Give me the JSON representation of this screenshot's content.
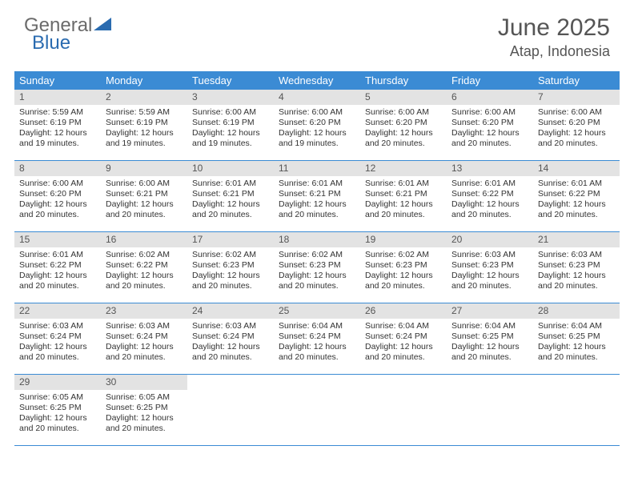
{
  "brand": {
    "general": "General",
    "blue": "Blue"
  },
  "title": {
    "month": "June 2025",
    "location": "Atap, Indonesia"
  },
  "colors": {
    "accent": "#3b8bd4",
    "accentDark": "#2a6bb0",
    "grayText": "#6a6a6a",
    "daynumBg": "#e3e3e3"
  },
  "dayNames": [
    "Sunday",
    "Monday",
    "Tuesday",
    "Wednesday",
    "Thursday",
    "Friday",
    "Saturday"
  ],
  "labels": {
    "sunrise": "Sunrise:",
    "sunset": "Sunset:",
    "daylight": "Daylight:"
  },
  "days": [
    {
      "n": 1,
      "sr": "5:59 AM",
      "ss": "6:19 PM",
      "dl": "12 hours and 19 minutes."
    },
    {
      "n": 2,
      "sr": "5:59 AM",
      "ss": "6:19 PM",
      "dl": "12 hours and 19 minutes."
    },
    {
      "n": 3,
      "sr": "6:00 AM",
      "ss": "6:19 PM",
      "dl": "12 hours and 19 minutes."
    },
    {
      "n": 4,
      "sr": "6:00 AM",
      "ss": "6:20 PM",
      "dl": "12 hours and 19 minutes."
    },
    {
      "n": 5,
      "sr": "6:00 AM",
      "ss": "6:20 PM",
      "dl": "12 hours and 20 minutes."
    },
    {
      "n": 6,
      "sr": "6:00 AM",
      "ss": "6:20 PM",
      "dl": "12 hours and 20 minutes."
    },
    {
      "n": 7,
      "sr": "6:00 AM",
      "ss": "6:20 PM",
      "dl": "12 hours and 20 minutes."
    },
    {
      "n": 8,
      "sr": "6:00 AM",
      "ss": "6:20 PM",
      "dl": "12 hours and 20 minutes."
    },
    {
      "n": 9,
      "sr": "6:00 AM",
      "ss": "6:21 PM",
      "dl": "12 hours and 20 minutes."
    },
    {
      "n": 10,
      "sr": "6:01 AM",
      "ss": "6:21 PM",
      "dl": "12 hours and 20 minutes."
    },
    {
      "n": 11,
      "sr": "6:01 AM",
      "ss": "6:21 PM",
      "dl": "12 hours and 20 minutes."
    },
    {
      "n": 12,
      "sr": "6:01 AM",
      "ss": "6:21 PM",
      "dl": "12 hours and 20 minutes."
    },
    {
      "n": 13,
      "sr": "6:01 AM",
      "ss": "6:22 PM",
      "dl": "12 hours and 20 minutes."
    },
    {
      "n": 14,
      "sr": "6:01 AM",
      "ss": "6:22 PM",
      "dl": "12 hours and 20 minutes."
    },
    {
      "n": 15,
      "sr": "6:01 AM",
      "ss": "6:22 PM",
      "dl": "12 hours and 20 minutes."
    },
    {
      "n": 16,
      "sr": "6:02 AM",
      "ss": "6:22 PM",
      "dl": "12 hours and 20 minutes."
    },
    {
      "n": 17,
      "sr": "6:02 AM",
      "ss": "6:23 PM",
      "dl": "12 hours and 20 minutes."
    },
    {
      "n": 18,
      "sr": "6:02 AM",
      "ss": "6:23 PM",
      "dl": "12 hours and 20 minutes."
    },
    {
      "n": 19,
      "sr": "6:02 AM",
      "ss": "6:23 PM",
      "dl": "12 hours and 20 minutes."
    },
    {
      "n": 20,
      "sr": "6:03 AM",
      "ss": "6:23 PM",
      "dl": "12 hours and 20 minutes."
    },
    {
      "n": 21,
      "sr": "6:03 AM",
      "ss": "6:23 PM",
      "dl": "12 hours and 20 minutes."
    },
    {
      "n": 22,
      "sr": "6:03 AM",
      "ss": "6:24 PM",
      "dl": "12 hours and 20 minutes."
    },
    {
      "n": 23,
      "sr": "6:03 AM",
      "ss": "6:24 PM",
      "dl": "12 hours and 20 minutes."
    },
    {
      "n": 24,
      "sr": "6:03 AM",
      "ss": "6:24 PM",
      "dl": "12 hours and 20 minutes."
    },
    {
      "n": 25,
      "sr": "6:04 AM",
      "ss": "6:24 PM",
      "dl": "12 hours and 20 minutes."
    },
    {
      "n": 26,
      "sr": "6:04 AM",
      "ss": "6:24 PM",
      "dl": "12 hours and 20 minutes."
    },
    {
      "n": 27,
      "sr": "6:04 AM",
      "ss": "6:25 PM",
      "dl": "12 hours and 20 minutes."
    },
    {
      "n": 28,
      "sr": "6:04 AM",
      "ss": "6:25 PM",
      "dl": "12 hours and 20 minutes."
    },
    {
      "n": 29,
      "sr": "6:05 AM",
      "ss": "6:25 PM",
      "dl": "12 hours and 20 minutes."
    },
    {
      "n": 30,
      "sr": "6:05 AM",
      "ss": "6:25 PM",
      "dl": "12 hours and 20 minutes."
    }
  ],
  "layout": {
    "startWeekday": 0,
    "weeks": 5,
    "daysInMonth": 30
  }
}
